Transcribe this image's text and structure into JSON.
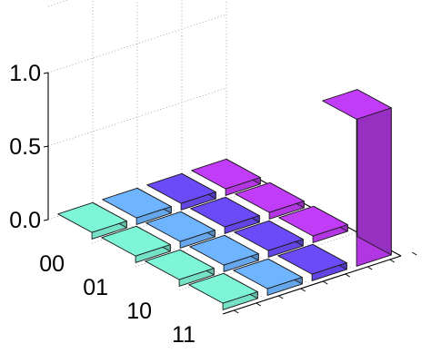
{
  "chart_data": {
    "type": "bar3d",
    "row_labels": [
      "00",
      "01",
      "10",
      "11"
    ],
    "column_labels": [
      "",
      "",
      "",
      ""
    ],
    "z_ticks": [
      "0.0",
      "0.5",
      "1.0"
    ],
    "zlim": [
      0,
      1.0
    ],
    "values": [
      [
        0.0,
        0.0,
        0.0,
        0.0
      ],
      [
        0.0,
        0.0,
        0.0,
        0.0
      ],
      [
        0.0,
        0.0,
        0.0,
        0.0
      ],
      [
        0.0,
        0.0,
        0.0,
        1.0
      ]
    ],
    "colors": [
      "#7ff5d8",
      "#6fb4ff",
      "#6a4bf7",
      "#c13cf6"
    ],
    "grid": true,
    "title": "",
    "xlabel": "",
    "ylabel": "",
    "zlabel": ""
  }
}
